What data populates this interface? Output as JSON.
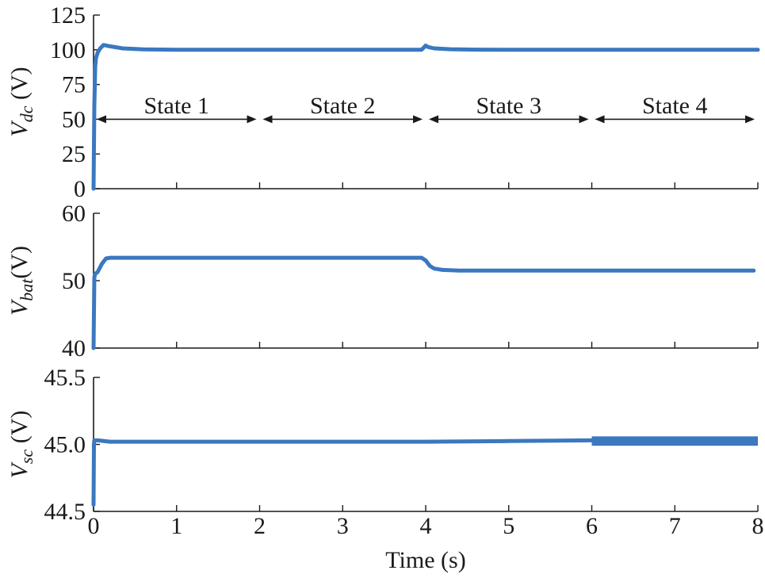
{
  "chart_data": [
    {
      "type": "line",
      "ylabel": {
        "var": "V",
        "sub": "dc",
        "unit": " (V)"
      },
      "xlim": [
        0,
        8
      ],
      "ylim": [
        0,
        125
      ],
      "yticks": [
        "0",
        "25",
        "50",
        "75",
        "100",
        "125"
      ],
      "ytick_values": [
        0,
        25,
        50,
        75,
        100,
        125
      ],
      "series": [
        {
          "color": "#3a78c0",
          "x": [
            0,
            0.01,
            0.02,
            0.03,
            0.05,
            0.08,
            0.12,
            0.2,
            0.35,
            0.6,
            1.0,
            2.0,
            3.0,
            3.95,
            4.0,
            4.03,
            4.1,
            4.3,
            4.6,
            5.0,
            6.0,
            7.0,
            8.0
          ],
          "y": [
            0,
            60,
            88,
            94,
            98,
            101,
            103.5,
            102.5,
            101,
            100.3,
            100,
            100,
            100,
            100,
            103,
            102,
            101,
            100.4,
            100.1,
            100,
            100,
            100,
            100
          ]
        }
      ],
      "annotations": [
        {
          "label": "State 1",
          "x_start": 0,
          "x_end": 2,
          "y": 50
        },
        {
          "label": "State 2",
          "x_start": 2,
          "x_end": 4,
          "y": 50
        },
        {
          "label": "State 3",
          "x_start": 4,
          "x_end": 6,
          "y": 50
        },
        {
          "label": "State 4",
          "x_start": 6,
          "x_end": 8,
          "y": 50
        }
      ]
    },
    {
      "type": "line",
      "ylabel": {
        "var": "V",
        "sub": "bat",
        "unit": "(V)"
      },
      "xlim": [
        0,
        8
      ],
      "ylim": [
        40,
        60
      ],
      "yticks": [
        "40",
        "50",
        "60"
      ],
      "ytick_values": [
        40,
        50,
        60
      ],
      "series": [
        {
          "color": "#3a78c0",
          "x": [
            0,
            0.01,
            0.02,
            0.05,
            0.1,
            0.15,
            0.2,
            0.4,
            1.0,
            2.0,
            3.0,
            3.95,
            4.0,
            4.05,
            4.1,
            4.2,
            4.4,
            5.0,
            6.0,
            7.0,
            7.95
          ],
          "y": [
            40,
            50.5,
            51,
            51.3,
            52.5,
            53.3,
            53.4,
            53.4,
            53.4,
            53.4,
            53.4,
            53.4,
            53,
            52.2,
            51.8,
            51.6,
            51.5,
            51.5,
            51.5,
            51.5,
            51.5
          ]
        }
      ]
    },
    {
      "type": "line",
      "ylabel": {
        "var": "V",
        "sub": "sc",
        "unit": " (V)"
      },
      "xlim": [
        0,
        8
      ],
      "ylim": [
        44.5,
        45.5
      ],
      "yticks": [
        "44.5",
        "45.0",
        "45.5"
      ],
      "ytick_values": [
        44.5,
        45.0,
        45.5
      ],
      "xticks": [
        "0",
        "1",
        "2",
        "3",
        "4",
        "5",
        "6",
        "7",
        "8"
      ],
      "xtick_values": [
        0,
        1,
        2,
        3,
        4,
        5,
        6,
        7,
        8
      ],
      "xlabel": "Time (s)",
      "series": [
        {
          "color": "#3a78c0",
          "x": [
            0,
            0.005,
            0.01,
            0.05,
            0.2,
            1.0,
            2.0,
            3.0,
            4.0,
            5.0,
            6.0
          ],
          "y": [
            44.55,
            45.0,
            45.03,
            45.03,
            45.02,
            45.02,
            45.02,
            45.02,
            45.02,
            45.025,
            45.03
          ]
        }
      ],
      "ripple_band": {
        "x_start": 6,
        "x_end": 8,
        "y_min": 44.99,
        "y_max": 45.06
      }
    }
  ]
}
